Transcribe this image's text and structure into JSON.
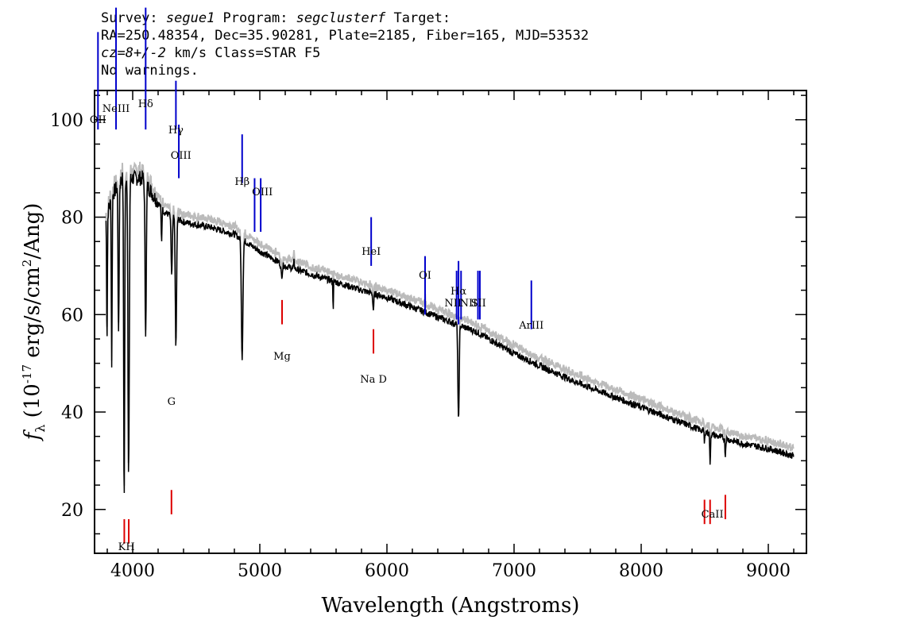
{
  "header": {
    "line1_prefix": "Survey: ",
    "survey": "segue1",
    "line1_mid": " Program: ",
    "program": "segclusterf",
    "line1_suffix": " Target:",
    "line2": "RA=250.48354, Dec=35.90281, Plate=2185, Fiber=165, MJD=53532",
    "line3_cz": "cz=8+/-2",
    "line3_rest": " km/s Class=STAR F5",
    "line4": "No warnings."
  },
  "chart_data": {
    "type": "line",
    "xlabel": "Wavelength (Angstroms)",
    "ylabel_prefix": "f",
    "ylabel_sub": "λ",
    "ylabel_main": " (10",
    "ylabel_exp": "-17",
    "ylabel_mid": " erg/s/cm",
    "ylabel_exp2": "2",
    "ylabel_end": "/Ang)",
    "xlim": [
      3700,
      9300
    ],
    "ylim": [
      11,
      106
    ],
    "xticks": [
      4000,
      5000,
      6000,
      7000,
      8000,
      9000
    ],
    "yticks": [
      20,
      40,
      60,
      80,
      100
    ],
    "series": [
      {
        "color": "#000000",
        "continuum": [
          [
            3790,
            80
          ],
          [
            3850,
            85
          ],
          [
            3920,
            88
          ],
          [
            4000,
            88
          ],
          [
            4080,
            88
          ],
          [
            4150,
            85
          ],
          [
            4250,
            81
          ],
          [
            4400,
            79
          ],
          [
            4600,
            78
          ],
          [
            4800,
            76.5
          ],
          [
            5000,
            73
          ],
          [
            5200,
            70
          ],
          [
            5500,
            67.5
          ],
          [
            5800,
            65
          ],
          [
            6000,
            63.5
          ],
          [
            6200,
            61.5
          ],
          [
            6500,
            58.5
          ],
          [
            6700,
            56.5
          ],
          [
            7000,
            52
          ],
          [
            7200,
            49.5
          ],
          [
            7500,
            46
          ],
          [
            7800,
            43
          ],
          [
            8000,
            41
          ],
          [
            8300,
            38
          ],
          [
            8600,
            35
          ],
          [
            8800,
            33.5
          ],
          [
            9000,
            32.5
          ],
          [
            9200,
            31
          ]
        ],
        "absorption": [
          [
            3798,
            55,
            3
          ],
          [
            3835,
            50,
            3
          ],
          [
            3889,
            55,
            4
          ],
          [
            3933,
            21,
            4
          ],
          [
            3968,
            26,
            5
          ],
          [
            4102,
            57,
            5
          ],
          [
            4227,
            75,
            3
          ],
          [
            4307,
            68,
            5
          ],
          [
            4340,
            53,
            5
          ],
          [
            4861,
            51,
            6
          ],
          [
            5172,
            68,
            6
          ],
          [
            5270,
            71,
            3
          ],
          [
            5577,
            61,
            2
          ],
          [
            5893,
            61,
            4
          ],
          [
            6300,
            62,
            2
          ],
          [
            6563,
            38,
            5
          ],
          [
            8498,
            33,
            2
          ],
          [
            8542,
            29,
            3
          ],
          [
            8662,
            31,
            3
          ]
        ]
      }
    ],
    "emission_lines": [
      {
        "label": "OII",
        "wavelength": 3727
      },
      {
        "label": "NeIII",
        "wavelength": 3869
      },
      {
        "label": "Hδ",
        "wavelength": 4102
      },
      {
        "label": "Hγ",
        "wavelength": 4340
      },
      {
        "label": "OIII",
        "wavelength": 4363
      },
      {
        "label": "Hβ",
        "wavelength": 4861
      },
      {
        "label": "OIII",
        "wavelength": 4959
      },
      {
        "label": "OIII",
        "wavelength": 5007
      },
      {
        "label": "HeI",
        "wavelength": 5876
      },
      {
        "label": "OI",
        "wavelength": 6300
      },
      {
        "label": "NII",
        "wavelength": 6548
      },
      {
        "label": "Hα",
        "wavelength": 6563
      },
      {
        "label": "NII",
        "wavelength": 6583
      },
      {
        "label": "SII",
        "wavelength": 6716
      },
      {
        "label": "SII",
        "wavelength": 6731
      },
      {
        "label": "ArIII",
        "wavelength": 7136
      }
    ],
    "absorption_lines": [
      {
        "label": "K",
        "wavelength": 3934
      },
      {
        "label": "H",
        "wavelength": 3969
      },
      {
        "label": "G",
        "wavelength": 4305
      },
      {
        "label": "Mg",
        "wavelength": 5175
      },
      {
        "label": "Na",
        "wavelength": 5894
      },
      {
        "label": "D",
        "wavelength": 5894
      },
      {
        "label": "CaII",
        "wavelength": 8498
      },
      {
        "label": "CaII",
        "wavelength": 8542
      },
      {
        "label": "CaII",
        "wavelength": 8662
      }
    ],
    "colors": {
      "emission": "#0000cc",
      "absorption": "#dd0000",
      "flux": "#000000",
      "error": "#bbbbbb",
      "frame": "#000000"
    }
  }
}
